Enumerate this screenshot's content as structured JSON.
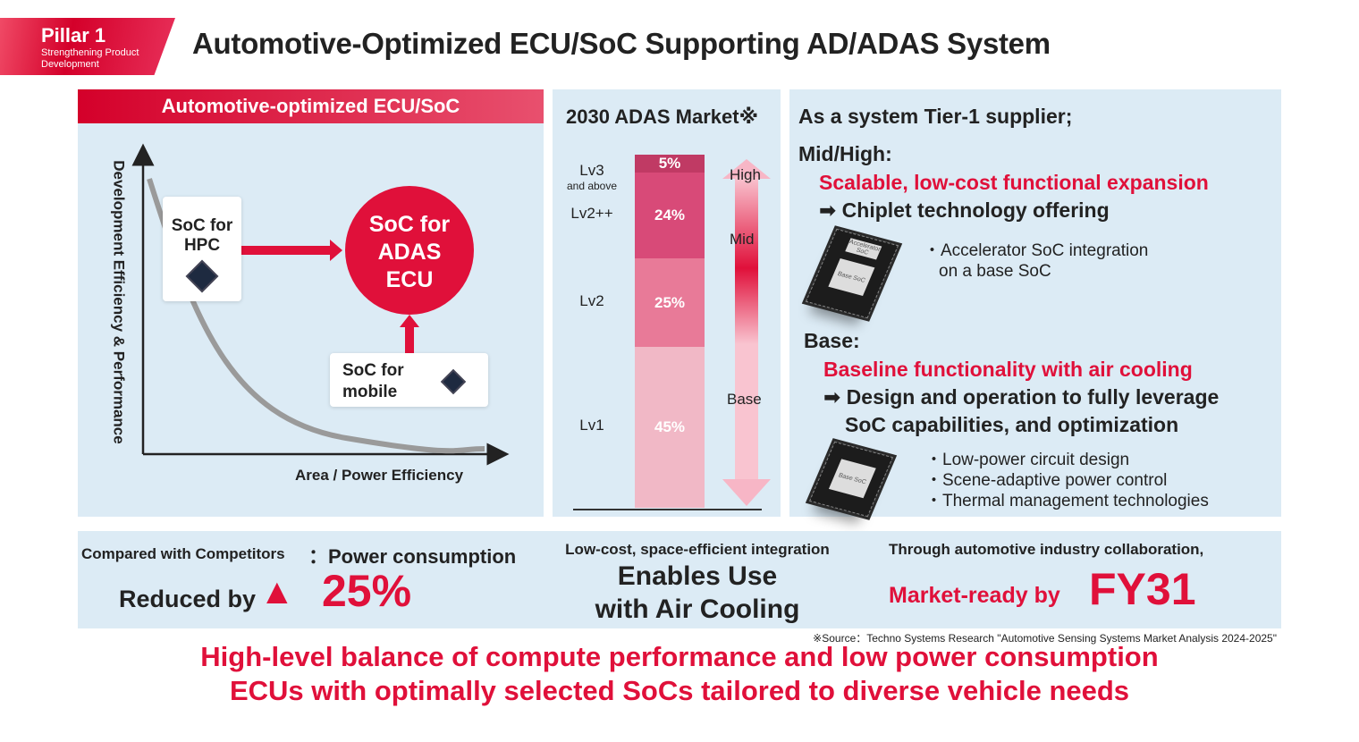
{
  "header": {
    "pillar": "Pillar 1",
    "pillar_sub": "Strengthening Product Development",
    "title": "Automotive-Optimized ECU/SoC Supporting AD/ADAS System"
  },
  "left_panel": {
    "title": "Automotive-optimized ECU/SoC",
    "y_axis": "Development Efficiency & Performance",
    "x_axis": "Area / Power Efficiency",
    "hpc": "SoC for HPC",
    "adas": "SoC for ADAS ECU",
    "mobile": "SoC for mobile"
  },
  "middle_panel": {
    "title": "2030 ADAS Market※",
    "arrow_labels": [
      "High",
      "Mid",
      "Base"
    ]
  },
  "chart_data": {
    "type": "bar",
    "stacked": true,
    "title": "2030 ADAS Market※",
    "categories": [
      "Lv1",
      "Lv2",
      "Lv2++",
      "Lv3 and above"
    ],
    "category_lines": [
      [
        "Lv1"
      ],
      [
        "Lv2"
      ],
      [
        "Lv2++"
      ],
      [
        "Lv3",
        "and above"
      ]
    ],
    "values": [
      45,
      25,
      24,
      5
    ],
    "labels": [
      "45%",
      "25%",
      "24%",
      "5%"
    ],
    "colors": [
      "#f1b8c6",
      "#e87a98",
      "#d84a78",
      "#c03a64"
    ]
  },
  "right_panel": {
    "intro": "As a system Tier-1 supplier;",
    "mid_title": "Mid/High:",
    "mid_red": "Scalable, low-cost functional expansion",
    "mid_arrow": "➡ Chiplet technology offering",
    "mid_bullets": [
      "・Accelerator SoC integration",
      "on a base SoC"
    ],
    "chip1_top": "Accelerator SoC",
    "chip_base": "Base SoC",
    "base_title": "Base:",
    "base_red": "Baseline functionality with air cooling",
    "base_arrow1": "➡ Design and operation to fully leverage",
    "base_arrow2": "SoC capabilities, and optimization",
    "base_bullets": [
      "・Low-power circuit design",
      "・Scene-adaptive power control",
      "・Thermal management technologies"
    ]
  },
  "band": {
    "c1_small": "Compared with Competitors",
    "c1_colon": "：Power consumption",
    "c1_reduced": "Reduced by",
    "c1_triangle": "▲",
    "c1_value": "25%",
    "c2_small": "Low-cost, space-efficient integration",
    "c2_big1": "Enables Use",
    "c2_big2": "with Air Cooling",
    "c3_small": "Through automotive industry collaboration,",
    "c3_pre": "Market-ready by",
    "c3_big": "FY31"
  },
  "source": "※Source：Techno Systems Research \"Automotive Sensing Systems Market Analysis 2024-2025\"",
  "footer": {
    "line1": "High-level balance of compute performance and low power consumption",
    "line2": "ECUs with optimally selected SoCs tailored to diverse vehicle needs"
  },
  "colors": {
    "accent": "#e0103a",
    "panel": "#dcebf5"
  }
}
